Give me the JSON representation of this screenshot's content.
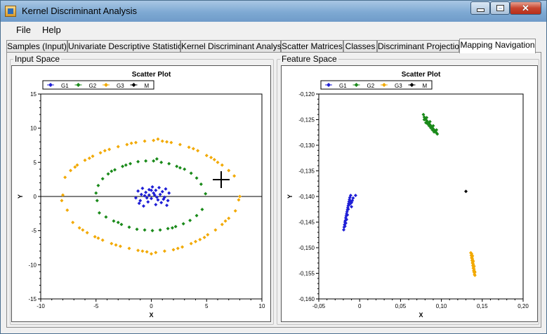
{
  "window": {
    "title": "Kernel Discriminant Analysis"
  },
  "menu": {
    "items": [
      "File",
      "Help"
    ]
  },
  "tabs": [
    "Samples (Input)",
    "Univariate Descriptive Statistics",
    "Kernel Discriminant Analysis",
    "Scatter Matrices",
    "Classes",
    "Discriminant Projection",
    "Mapping Navigation"
  ],
  "active_tab": "Mapping Navigation",
  "panels": {
    "input": {
      "caption": "Input Space"
    },
    "feature": {
      "caption": "Feature Space"
    }
  },
  "colors": {
    "G1": "#1f1fd6",
    "G2": "#1a8a1a",
    "G3": "#f2a900",
    "M": "#000000"
  },
  "chart_data": [
    {
      "type": "scatter",
      "title": "Scatter Plot",
      "xlabel": "X",
      "ylabel": "Y",
      "xlim": [
        -10,
        10
      ],
      "ylim": [
        -15,
        15
      ],
      "xticks": [
        "-10",
        "-5",
        "0",
        "5",
        "10"
      ],
      "yticks": [
        "-15",
        "-10",
        "-5",
        "0",
        "5",
        "10",
        "15"
      ],
      "legend": [
        "G1",
        "G2",
        "G3",
        "M"
      ],
      "legend_position": "top",
      "series": [
        {
          "name": "G1",
          "points": [
            [
              -1.2,
              0.8
            ],
            [
              -0.8,
              1.2
            ],
            [
              -0.5,
              0.6
            ],
            [
              -0.2,
              1.0
            ],
            [
              0.1,
              1.4
            ],
            [
              0.4,
              0.9
            ],
            [
              0.7,
              1.3
            ],
            [
              1.0,
              0.7
            ],
            [
              1.3,
              1.1
            ],
            [
              1.6,
              0.5
            ],
            [
              -1.4,
              -0.2
            ],
            [
              -1.0,
              -0.6
            ],
            [
              -0.6,
              0.1
            ],
            [
              -0.3,
              -0.8
            ],
            [
              0.0,
              -0.3
            ],
            [
              0.3,
              0.2
            ],
            [
              0.6,
              -0.5
            ],
            [
              0.9,
              -0.9
            ],
            [
              1.2,
              -0.1
            ],
            [
              1.5,
              -0.6
            ],
            [
              -0.9,
              0.3
            ],
            [
              -0.4,
              -0.2
            ],
            [
              0.2,
              0.5
            ],
            [
              0.5,
              -0.1
            ],
            [
              0.8,
              0.3
            ],
            [
              1.1,
              -0.4
            ],
            [
              -1.1,
              -1.0
            ],
            [
              -0.7,
              -1.4
            ],
            [
              0.4,
              -1.2
            ],
            [
              1.4,
              -1.3
            ],
            [
              0.0,
              0.9
            ],
            [
              -0.2,
              0.2
            ]
          ]
        },
        {
          "name": "G2",
          "points": [
            [
              -5.0,
              0.5
            ],
            [
              -4.8,
              1.6
            ],
            [
              -4.4,
              2.6
            ],
            [
              -3.9,
              3.3
            ],
            [
              -3.3,
              3.9
            ],
            [
              -2.6,
              4.4
            ],
            [
              -1.9,
              4.8
            ],
            [
              -1.2,
              5.1
            ],
            [
              -0.5,
              5.2
            ],
            [
              0.2,
              5.2
            ],
            [
              0.9,
              5.0
            ],
            [
              1.6,
              4.8
            ],
            [
              2.3,
              4.4
            ],
            [
              3.0,
              4.0
            ],
            [
              3.6,
              3.4
            ],
            [
              4.1,
              2.7
            ],
            [
              4.5,
              1.8
            ],
            [
              4.9,
              0.4
            ],
            [
              -4.9,
              -0.6
            ],
            [
              -4.7,
              -2.4
            ],
            [
              -4.1,
              -3.0
            ],
            [
              -3.4,
              -3.6
            ],
            [
              -2.7,
              -4.1
            ],
            [
              -2.0,
              -4.5
            ],
            [
              -1.3,
              -4.8
            ],
            [
              -0.6,
              -4.9
            ],
            [
              0.1,
              -5.0
            ],
            [
              0.8,
              -4.9
            ],
            [
              1.5,
              -4.7
            ],
            [
              2.2,
              -4.4
            ],
            [
              2.9,
              -4.0
            ],
            [
              3.5,
              -3.5
            ],
            [
              4.1,
              -2.8
            ],
            [
              4.6,
              -1.9
            ],
            [
              -3.6,
              3.7
            ],
            [
              -2.3,
              4.6
            ],
            [
              0.5,
              5.5
            ],
            [
              2.6,
              4.2
            ],
            [
              -3.0,
              -3.8
            ],
            [
              1.9,
              -4.6
            ]
          ]
        },
        {
          "name": "G3",
          "points": [
            [
              -8.0,
              0.2
            ],
            [
              -7.8,
              2.8
            ],
            [
              -7.3,
              3.8
            ],
            [
              -6.7,
              4.6
            ],
            [
              -6.0,
              5.3
            ],
            [
              -5.3,
              5.9
            ],
            [
              -4.6,
              6.4
            ],
            [
              -3.8,
              6.9
            ],
            [
              -3.0,
              7.3
            ],
            [
              -2.2,
              7.6
            ],
            [
              -1.4,
              7.9
            ],
            [
              -0.6,
              8.1
            ],
            [
              0.2,
              8.2
            ],
            [
              1.0,
              8.1
            ],
            [
              1.8,
              7.9
            ],
            [
              2.6,
              7.6
            ],
            [
              3.4,
              7.2
            ],
            [
              4.2,
              6.7
            ],
            [
              5.0,
              6.0
            ],
            [
              5.7,
              5.4
            ],
            [
              6.4,
              4.6
            ],
            [
              7.0,
              3.8
            ],
            [
              7.5,
              3.0
            ],
            [
              8.0,
              0.0
            ],
            [
              -8.1,
              -0.6
            ],
            [
              -7.6,
              -2.0
            ],
            [
              -7.1,
              -3.8
            ],
            [
              -6.5,
              -4.6
            ],
            [
              -5.8,
              -5.3
            ],
            [
              -5.1,
              -5.9
            ],
            [
              -4.4,
              -6.4
            ],
            [
              -3.6,
              -6.9
            ],
            [
              -2.8,
              -7.3
            ],
            [
              -2.0,
              -7.6
            ],
            [
              -1.2,
              -7.9
            ],
            [
              -0.4,
              -8.1
            ],
            [
              0.4,
              -8.2
            ],
            [
              1.2,
              -8.0
            ],
            [
              2.0,
              -7.8
            ],
            [
              2.8,
              -7.4
            ],
            [
              3.6,
              -6.9
            ],
            [
              4.4,
              -6.3
            ],
            [
              5.1,
              -5.6
            ],
            [
              5.8,
              -4.9
            ],
            [
              6.4,
              -4.1
            ],
            [
              7.0,
              -3.2
            ],
            [
              7.6,
              -2.1
            ],
            [
              7.9,
              -0.5
            ],
            [
              -6.9,
              4.3
            ],
            [
              -4.2,
              6.7
            ],
            [
              -1.8,
              7.8
            ],
            [
              1.4,
              8.0
            ],
            [
              3.8,
              7.0
            ],
            [
              6.0,
              5.0
            ],
            [
              -6.2,
              -4.9
            ],
            [
              -3.2,
              -7.1
            ],
            [
              -0.8,
              -8.0
            ],
            [
              2.4,
              -7.6
            ],
            [
              4.8,
              -6.0
            ],
            [
              6.7,
              -3.6
            ],
            [
              -5.6,
              5.6
            ],
            [
              0.6,
              8.4
            ],
            [
              5.4,
              5.7
            ],
            [
              -4.8,
              -6.1
            ],
            [
              0.0,
              -8.4
            ],
            [
              4.0,
              -6.6
            ]
          ]
        },
        {
          "name": "M",
          "points": []
        }
      ],
      "annotations": {
        "horizontal_line_y": 0
      }
    },
    {
      "type": "scatter",
      "title": "Scatter Plot",
      "xlabel": "X",
      "ylabel": "Y",
      "xlim": [
        -0.05,
        0.2
      ],
      "ylim": [
        -0.16,
        -0.12
      ],
      "xticks": [
        "-0,05",
        "0",
        "0,05",
        "0,10",
        "0,15",
        "0,20"
      ],
      "yticks": [
        "-0,160",
        "-0,155",
        "-0,150",
        "-0,145",
        "-0,140",
        "-0,135",
        "-0,130",
        "-0,125",
        "-0,120"
      ],
      "legend": [
        "G1",
        "G2",
        "G3",
        "M"
      ],
      "legend_position": "top",
      "series": [
        {
          "name": "G1",
          "points": [
            [
              -0.0195,
              -0.1465
            ],
            [
              -0.019,
              -0.146
            ],
            [
              -0.0185,
              -0.1455
            ],
            [
              -0.018,
              -0.145
            ],
            [
              -0.0175,
              -0.1447
            ],
            [
              -0.017,
              -0.1442
            ],
            [
              -0.0165,
              -0.1438
            ],
            [
              -0.016,
              -0.1434
            ],
            [
              -0.0155,
              -0.143
            ],
            [
              -0.015,
              -0.1426
            ],
            [
              -0.0145,
              -0.1422
            ],
            [
              -0.014,
              -0.1418
            ],
            [
              -0.0135,
              -0.1414
            ],
            [
              -0.013,
              -0.141
            ],
            [
              -0.0125,
              -0.1406
            ],
            [
              -0.012,
              -0.1402
            ],
            [
              -0.011,
              -0.1398
            ],
            [
              -0.01,
              -0.1412
            ],
            [
              -0.009,
              -0.1408
            ],
            [
              -0.008,
              -0.1403
            ],
            [
              -0.005,
              -0.1398
            ],
            [
              -0.018,
              -0.1458
            ],
            [
              -0.016,
              -0.1445
            ],
            [
              -0.014,
              -0.1425
            ],
            [
              -0.012,
              -0.1415
            ],
            [
              -0.01,
              -0.142
            ],
            [
              -0.017,
              -0.1452
            ],
            [
              -0.015,
              -0.1436
            ],
            [
              -0.011,
              -0.141
            ]
          ]
        },
        {
          "name": "G2",
          "points": [
            [
              0.078,
              -0.124
            ],
            [
              0.079,
              -0.1245
            ],
            [
              0.08,
              -0.1248
            ],
            [
              0.081,
              -0.125
            ],
            [
              0.082,
              -0.1252
            ],
            [
              0.083,
              -0.1254
            ],
            [
              0.084,
              -0.1256
            ],
            [
              0.085,
              -0.1258
            ],
            [
              0.086,
              -0.126
            ],
            [
              0.087,
              -0.1262
            ],
            [
              0.088,
              -0.1264
            ],
            [
              0.089,
              -0.1266
            ],
            [
              0.09,
              -0.1268
            ],
            [
              0.091,
              -0.127
            ],
            [
              0.092,
              -0.1272
            ],
            [
              0.093,
              -0.1274
            ],
            [
              0.094,
              -0.1276
            ],
            [
              0.095,
              -0.1278
            ],
            [
              0.079,
              -0.125
            ],
            [
              0.081,
              -0.1256
            ],
            [
              0.083,
              -0.1258
            ],
            [
              0.085,
              -0.1262
            ],
            [
              0.087,
              -0.1266
            ],
            [
              0.089,
              -0.127
            ],
            [
              0.091,
              -0.1274
            ],
            [
              0.082,
              -0.1246
            ],
            [
              0.086,
              -0.1254
            ],
            [
              0.09,
              -0.1262
            ],
            [
              0.094,
              -0.127
            ]
          ]
        },
        {
          "name": "G3",
          "points": [
            [
              0.136,
              -0.151
            ],
            [
              0.1365,
              -0.1515
            ],
            [
              0.137,
              -0.152
            ],
            [
              0.1375,
              -0.1525
            ],
            [
              0.138,
              -0.153
            ],
            [
              0.1385,
              -0.1535
            ],
            [
              0.139,
              -0.154
            ],
            [
              0.1395,
              -0.1545
            ],
            [
              0.14,
              -0.1548
            ],
            [
              0.1405,
              -0.1552
            ],
            [
              0.141,
              -0.1554
            ],
            [
              0.138,
              -0.1522
            ],
            [
              0.1385,
              -0.1528
            ],
            [
              0.139,
              -0.1532
            ],
            [
              0.1395,
              -0.1538
            ],
            [
              0.14,
              -0.1542
            ],
            [
              0.1405,
              -0.1546
            ],
            [
              0.137,
              -0.1512
            ],
            [
              0.1375,
              -0.1518
            ],
            [
              0.14,
              -0.1536
            ],
            [
              0.141,
              -0.1548
            ],
            [
              0.139,
              -0.1526
            ],
            [
              0.138,
              -0.1516
            ]
          ]
        },
        {
          "name": "M",
          "points": [
            [
              0.13,
              -0.139
            ]
          ]
        }
      ]
    }
  ]
}
